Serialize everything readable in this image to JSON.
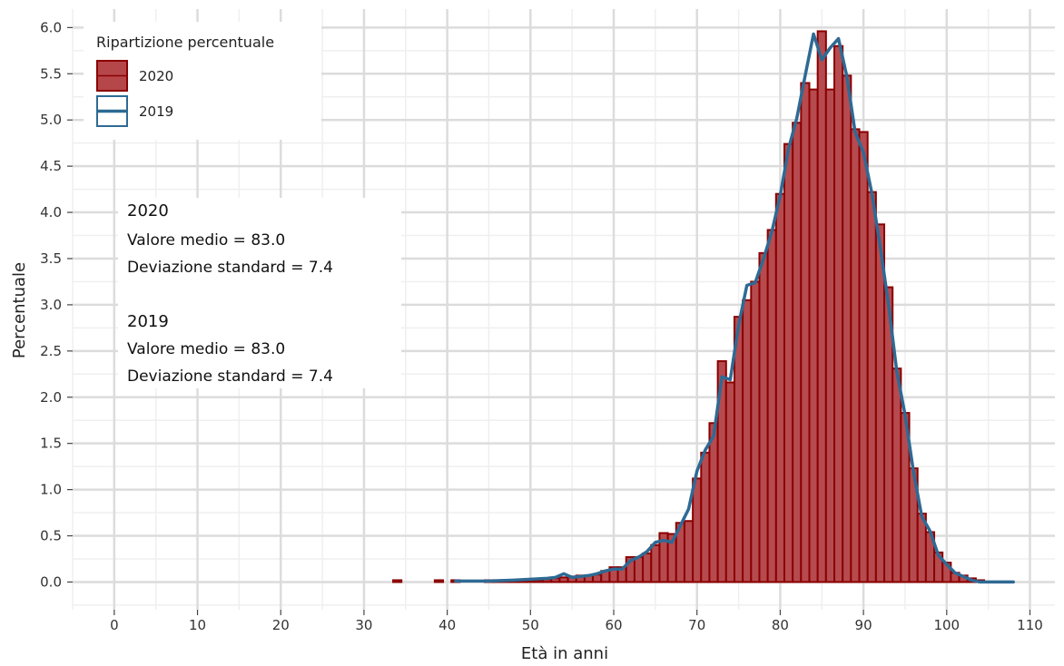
{
  "chart_data": {
    "type": "bar",
    "xlabel": "Età in anni",
    "ylabel": "Percentuale",
    "xlim": [
      -5,
      113
    ],
    "ylim": [
      -0.3,
      6.2
    ],
    "x_ticks": [
      0,
      10,
      20,
      30,
      40,
      50,
      60,
      70,
      80,
      90,
      100,
      110
    ],
    "y_ticks": [
      0,
      0.5,
      1,
      1.5,
      2,
      2.5,
      3,
      3.5,
      4,
      4.5,
      5,
      5.5,
      6
    ],
    "y_tick_labels": [
      "0.0",
      "0.5",
      "1.0",
      "1.5",
      "2.0",
      "2.5",
      "3.0",
      "3.5",
      "4.0",
      "4.5",
      "5.0",
      "5.5",
      "6.0"
    ],
    "x_tick_labels": [
      "0",
      "10",
      "20",
      "30",
      "40",
      "50",
      "60",
      "70",
      "80",
      "90",
      "100",
      "110"
    ],
    "grid": true,
    "legend": {
      "title": "Ripartizione percentuale",
      "position": "top-left",
      "entries": [
        {
          "label": "2020",
          "kind": "bar",
          "fill": "#b5474b",
          "stroke": "#8b0000"
        },
        {
          "label": "2019",
          "kind": "line",
          "stroke": "#2e6a94"
        }
      ]
    },
    "annotation": {
      "blocks": [
        {
          "heading": "2020",
          "lines": [
            "Valore medio = 83.0",
            "Deviazione standard = 7.4"
          ]
        },
        {
          "heading": "2019",
          "lines": [
            "Valore medio = 83.0",
            "Deviazione standard = 7.4"
          ]
        }
      ]
    },
    "series": [
      {
        "name": "2020",
        "kind": "bar",
        "fill": "#b5474b",
        "stroke": "#8b0000",
        "x": [
          34,
          39,
          41,
          45,
          46,
          47,
          48,
          49,
          50,
          51,
          52,
          53,
          54,
          55,
          56,
          57,
          58,
          59,
          60,
          61,
          62,
          63,
          64,
          65,
          66,
          67,
          68,
          69,
          70,
          71,
          72,
          73,
          74,
          75,
          76,
          77,
          78,
          79,
          80,
          81,
          82,
          83,
          84,
          85,
          86,
          87,
          88,
          89,
          90,
          91,
          92,
          93,
          94,
          95,
          96,
          97,
          98,
          99,
          100,
          101,
          102,
          103,
          104
        ],
        "values": [
          0.0,
          0.0,
          0.0,
          0.0,
          0.0,
          0.0,
          0.0,
          0.02,
          0.02,
          0.02,
          0.03,
          0.04,
          0.05,
          0.06,
          0.07,
          0.07,
          0.08,
          0.12,
          0.16,
          0.16,
          0.27,
          0.27,
          0.31,
          0.4,
          0.53,
          0.52,
          0.64,
          0.66,
          1.12,
          1.4,
          1.72,
          2.39,
          2.16,
          2.87,
          3.05,
          3.25,
          3.56,
          3.81,
          4.2,
          4.74,
          4.97,
          5.4,
          5.33,
          5.96,
          5.33,
          5.8,
          5.48,
          4.9,
          4.87,
          4.22,
          3.87,
          3.19,
          2.31,
          1.83,
          1.23,
          0.74,
          0.54,
          0.32,
          0.21,
          0.1,
          0.07,
          0.04,
          0.01
        ]
      },
      {
        "name": "2019",
        "kind": "line",
        "stroke": "#2e6a94",
        "x": [
          41,
          45,
          48,
          50,
          52,
          53,
          54,
          55,
          56,
          57,
          58,
          59,
          60,
          61,
          62,
          63,
          64,
          65,
          66,
          67,
          68,
          69,
          70,
          71,
          72,
          73,
          74,
          75,
          76,
          77,
          78,
          79,
          80,
          81,
          82,
          83,
          84,
          85,
          86,
          87,
          88,
          89,
          90,
          91,
          92,
          93,
          94,
          95,
          96,
          97,
          98,
          99,
          100,
          101,
          102,
          103,
          104,
          105,
          108
        ],
        "values": [
          0.01,
          0.01,
          0.02,
          0.03,
          0.04,
          0.05,
          0.09,
          0.05,
          0.06,
          0.07,
          0.09,
          0.12,
          0.14,
          0.14,
          0.23,
          0.27,
          0.33,
          0.43,
          0.45,
          0.43,
          0.61,
          0.79,
          1.2,
          1.43,
          1.58,
          2.22,
          2.19,
          2.78,
          3.21,
          3.24,
          3.5,
          3.79,
          4.18,
          4.69,
          5.02,
          5.48,
          5.93,
          5.65,
          5.78,
          5.88,
          5.47,
          4.87,
          4.65,
          4.21,
          3.64,
          3.01,
          2.28,
          1.81,
          1.2,
          0.71,
          0.55,
          0.29,
          0.19,
          0.1,
          0.06,
          0.02,
          0.0,
          0.0,
          0.0
        ]
      }
    ]
  }
}
